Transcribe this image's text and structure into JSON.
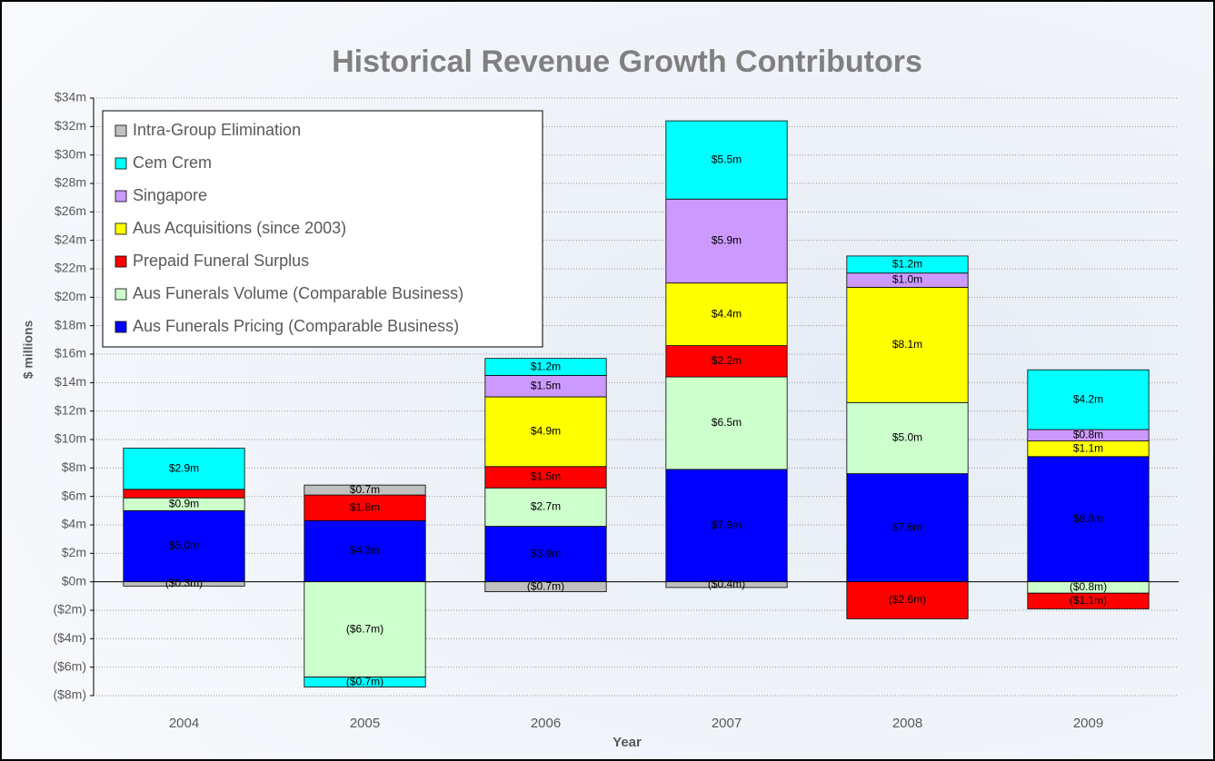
{
  "chart_data": {
    "type": "stacked_bar",
    "title": "Historical Revenue Growth Contributors",
    "xlabel": "Year",
    "ylabel": "$ millions",
    "categories": [
      "2004",
      "2005",
      "2006",
      "2007",
      "2008",
      "2009"
    ],
    "series": [
      {
        "name": "Aus Funerals Pricing (Comparable Business)",
        "color": "#0000ff",
        "values": [
          5.0,
          4.3,
          3.9,
          7.9,
          7.6,
          8.8
        ],
        "value_labels": [
          "$5.0m",
          "$4.3m",
          "$3.9m",
          "$7.9m",
          "$7.6m",
          "$8.8m"
        ]
      },
      {
        "name": "Aus Funerals Volume (Comparable Business)",
        "color": "#ccffcc",
        "values": [
          0.9,
          -6.7,
          2.7,
          6.5,
          5.0,
          -0.8
        ],
        "value_labels": [
          "$0.9m",
          "($6.7m)",
          "$2.7m",
          "$6.5m",
          "$5.0m",
          "($0.8m)"
        ]
      },
      {
        "name": "Prepaid Funeral Surplus",
        "color": "#ff0000",
        "values": [
          0.6,
          1.8,
          1.5,
          2.2,
          -2.6,
          -1.1
        ],
        "value_labels": [
          null,
          "$1.8m",
          "$1.5m",
          "$2.2m",
          "($2.6m)",
          "($1.1m)"
        ]
      },
      {
        "name": "Aus Acquisitions (since 2003)",
        "color": "#ffff00",
        "values": [
          0,
          0,
          4.9,
          4.4,
          8.1,
          1.1
        ],
        "value_labels": [
          null,
          null,
          "$4.9m",
          "$4.4m",
          "$8.1m",
          "$1.1m"
        ]
      },
      {
        "name": "Singapore",
        "color": "#cc99ff",
        "values": [
          0,
          0,
          1.5,
          5.9,
          1.0,
          0.8
        ],
        "value_labels": [
          null,
          null,
          "$1.5m",
          "$5.9m",
          "$1.0m",
          "$0.8m"
        ]
      },
      {
        "name": "Cem Crem",
        "color": "#00ffff",
        "values": [
          2.9,
          -0.7,
          1.2,
          5.5,
          1.2,
          4.2
        ],
        "value_labels": [
          "$2.9m",
          "($0.7m)",
          "$1.2m",
          "$5.5m",
          "$1.2m",
          "$4.2m"
        ]
      },
      {
        "name": "Intra-Group Elimination",
        "color": "#c0c0c0",
        "values": [
          -0.3,
          0.7,
          -0.7,
          -0.4,
          0,
          0
        ],
        "value_labels": [
          "($0.3m)",
          "$0.7m",
          "($0.7m)",
          "($0.4m)",
          null,
          null
        ]
      }
    ],
    "ylim": [
      -8,
      34
    ],
    "yticks": [
      {
        "value": -8,
        "label": "($8m)"
      },
      {
        "value": -6,
        "label": "($6m)"
      },
      {
        "value": -4,
        "label": "($4m)"
      },
      {
        "value": -2,
        "label": "($2m)"
      },
      {
        "value": 0,
        "label": "$0m"
      },
      {
        "value": 2,
        "label": "$2m"
      },
      {
        "value": 4,
        "label": "$4m"
      },
      {
        "value": 6,
        "label": "$6m"
      },
      {
        "value": 8,
        "label": "$8m"
      },
      {
        "value": 10,
        "label": "$10m"
      },
      {
        "value": 12,
        "label": "$12m"
      },
      {
        "value": 14,
        "label": "$14m"
      },
      {
        "value": 16,
        "label": "$16m"
      },
      {
        "value": 18,
        "label": "$18m"
      },
      {
        "value": 20,
        "label": "$20m"
      },
      {
        "value": 22,
        "label": "$22m"
      },
      {
        "value": 24,
        "label": "$24m"
      },
      {
        "value": 26,
        "label": "$26m"
      },
      {
        "value": 28,
        "label": "$28m"
      },
      {
        "value": 30,
        "label": "$30m"
      },
      {
        "value": 32,
        "label": "$32m"
      },
      {
        "value": 34,
        "label": "$34m"
      }
    ],
    "grid": true,
    "legend": "upper left"
  }
}
